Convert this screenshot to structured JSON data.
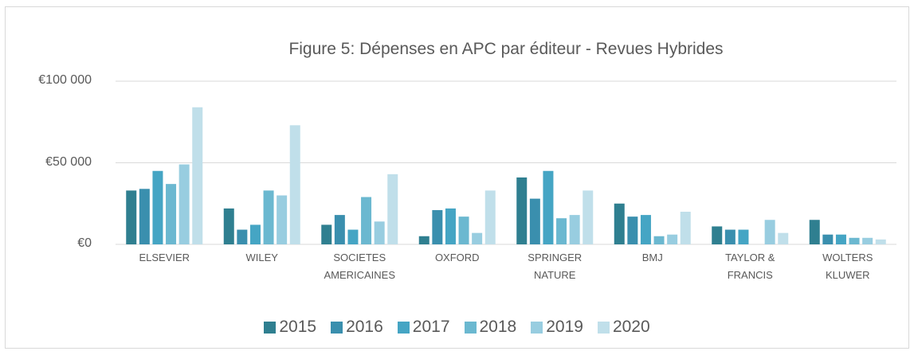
{
  "chart_data": {
    "type": "bar",
    "title": "Figure 5: Dépenses en APC par éditeur - Revues Hybrides",
    "categories": [
      "ELSEVIER",
      "WILEY",
      "SOCIETES AMERICAINES",
      "OXFORD",
      "SPRINGER NATURE",
      "BMJ",
      "TAYLOR & FRANCIS",
      "WOLTERS KLUWER"
    ],
    "series": [
      {
        "name": "2015",
        "color": "#2f7f90",
        "values": [
          33000,
          22000,
          12000,
          5000,
          41000,
          25000,
          11000,
          15000
        ]
      },
      {
        "name": "2016",
        "color": "#3a8fae",
        "values": [
          34000,
          9000,
          18000,
          21000,
          28000,
          17000,
          9000,
          6000
        ]
      },
      {
        "name": "2017",
        "color": "#45a5c4",
        "values": [
          45000,
          12000,
          9000,
          22000,
          45000,
          18000,
          9000,
          6000
        ]
      },
      {
        "name": "2018",
        "color": "#6bb8d0",
        "values": [
          37000,
          33000,
          29000,
          17000,
          16000,
          5000,
          null,
          4000
        ]
      },
      {
        "name": "2019",
        "color": "#98cde0",
        "values": [
          49000,
          30000,
          14000,
          7000,
          18000,
          6000,
          15000,
          4000
        ]
      },
      {
        "name": "2020",
        "color": "#c0dfea",
        "values": [
          84000,
          73000,
          43000,
          33000,
          33000,
          20000,
          7000,
          3000
        ]
      }
    ],
    "ylim": [
      0,
      100000
    ],
    "yticks": [
      {
        "value": 0,
        "label": "€0"
      },
      {
        "value": 50000,
        "label": "€50 000"
      },
      {
        "value": 100000,
        "label": "€100 000"
      }
    ],
    "grid": true,
    "legend": "bottom"
  }
}
